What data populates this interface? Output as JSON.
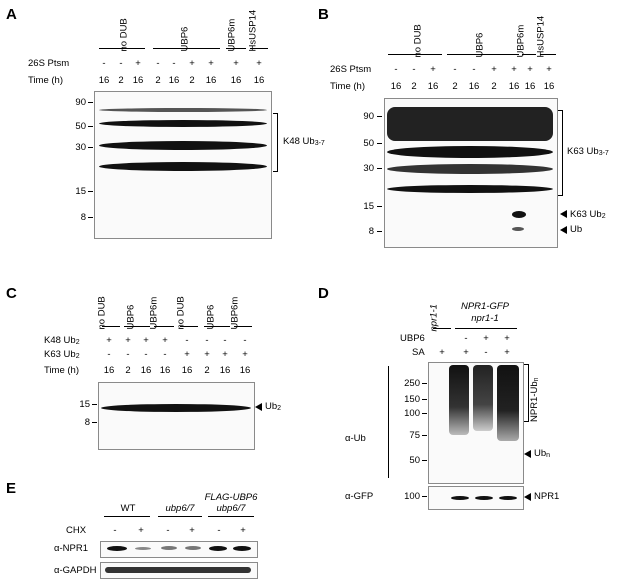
{
  "panelA": {
    "letter": "A",
    "groups": [
      "no DUB",
      "UBP6",
      "UBP6m",
      "HsUSP14"
    ],
    "row1_label": "26S Ptsm",
    "row1": [
      "-",
      "-",
      "+",
      "-",
      "-",
      "+",
      "+",
      "+",
      "+"
    ],
    "row2_label": "Time (h)",
    "row2": [
      "16",
      "2",
      "16",
      "2",
      "16",
      "2",
      "16",
      "16",
      "16"
    ],
    "markers": [
      "90",
      "50",
      "30",
      "15",
      "8"
    ],
    "bracket_label": "K48 Ub",
    "bracket_sub": "3-7"
  },
  "panelB": {
    "letter": "B",
    "groups": [
      "no DUB",
      "UBP6",
      "UBP6m",
      "HsUSP14"
    ],
    "row1_label": "26S Ptsm",
    "row1": [
      "-",
      "-",
      "+",
      "-",
      "-",
      "+",
      "+",
      "+",
      "+"
    ],
    "row2_label": "Time (h)",
    "row2": [
      "16",
      "2",
      "16",
      "2",
      "16",
      "2",
      "16",
      "16",
      "16"
    ],
    "markers": [
      "90",
      "50",
      "30",
      "15",
      "8"
    ],
    "bracket_label": "K63 Ub",
    "bracket_sub": "3-7",
    "arrow1_label": "K63 Ub",
    "arrow1_sub": "2",
    "arrow2_label": "Ub"
  },
  "panelC": {
    "letter": "C",
    "groups": [
      "no DUB",
      "UBP6",
      "UBP6m",
      "no DUB",
      "UBP6",
      "UBP6m"
    ],
    "row1_label": "K48 Ub",
    "row1_sub": "2",
    "row1": [
      "+",
      "+",
      "+",
      "+",
      "-",
      "-",
      "-",
      "-"
    ],
    "row2_label": "K63 Ub",
    "row2_sub": "2",
    "row2": [
      "-",
      "-",
      "-",
      "-",
      "+",
      "+",
      "+",
      "+"
    ],
    "row3_label": "Time (h)",
    "row3": [
      "16",
      "2",
      "16",
      "16",
      "16",
      "2",
      "16",
      "16"
    ],
    "markers": [
      "15",
      "8"
    ],
    "arrow_label": "Ub",
    "arrow_sub": "2"
  },
  "panelD": {
    "letter": "D",
    "genotype1": "npr1-1",
    "genotype2_line1": "NPR1-GFP",
    "genotype2_line2": "npr1-1",
    "row1_label": "UBP6",
    "row1": [
      "",
      "-",
      "+",
      "+"
    ],
    "row2_label": "SA",
    "row2": [
      "+",
      "+",
      "-",
      "+"
    ],
    "antibody1": "α-Ub",
    "antibody2": "α-GFP",
    "markers": [
      "250",
      "150",
      "100",
      "75",
      "50"
    ],
    "marker_gfp": "100",
    "bracket_label": "NPR1-Ub",
    "bracket_sub": "n",
    "arrow1_label": "Ub",
    "arrow1_sub": "n",
    "arrow2_label": "NPR1"
  },
  "panelE": {
    "letter": "E",
    "genotypes": [
      "WT",
      "ubp6/7",
      "FLAG-UBP6",
      "ubp6/7"
    ],
    "row1_label": "CHX",
    "row1": [
      "-",
      "+",
      "-",
      "+",
      "-",
      "+"
    ],
    "antibody1": "α-NPR1",
    "antibody2": "α-GAPDH"
  }
}
